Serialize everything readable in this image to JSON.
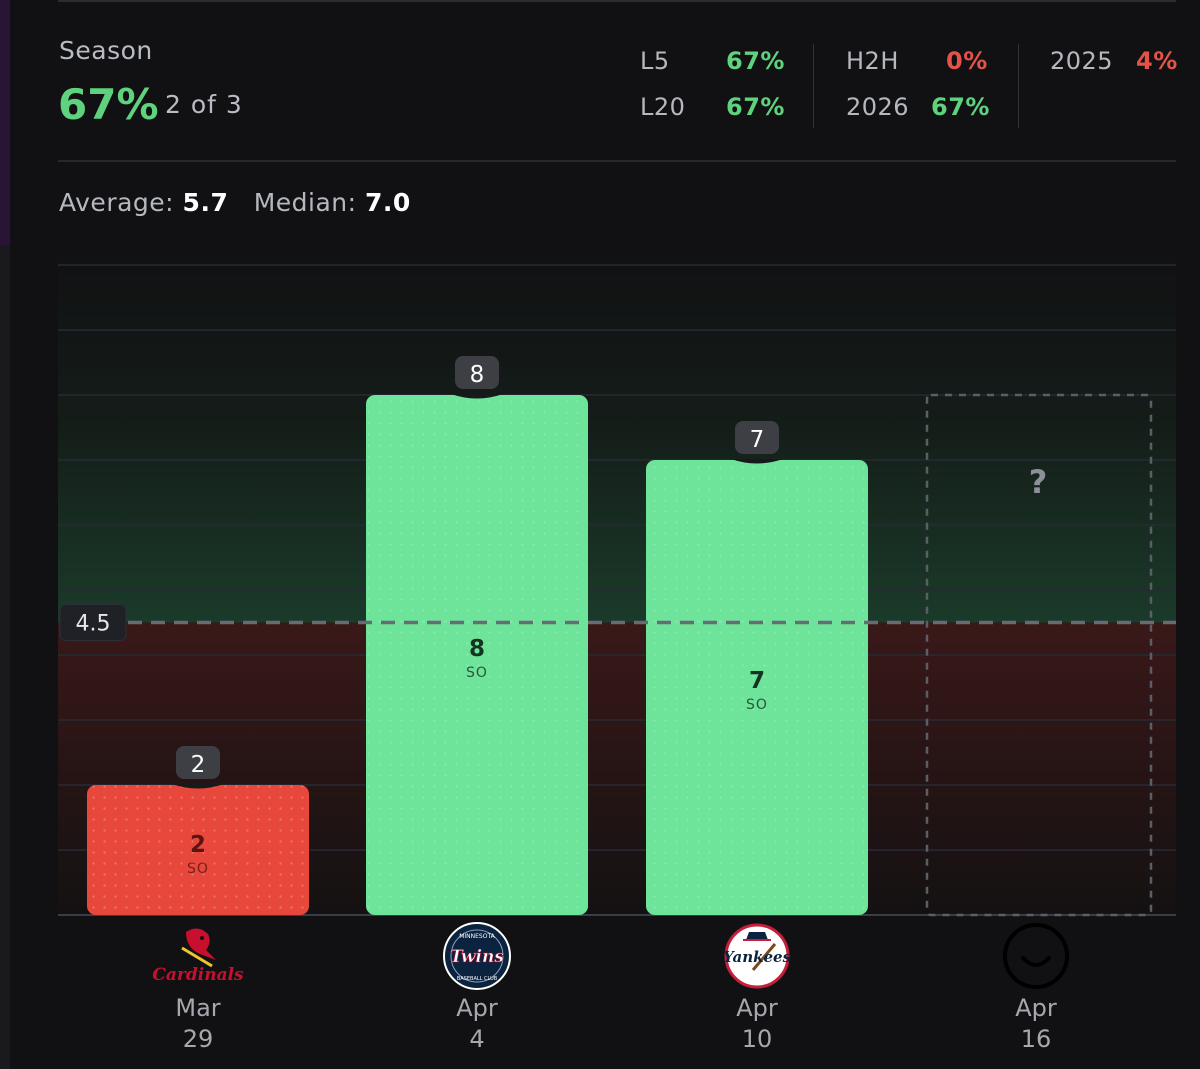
{
  "season": {
    "label": "Season",
    "hit_pct": "67%",
    "count": "2 of 3"
  },
  "stats": {
    "l5_label": "L5",
    "l5_value": "67%",
    "l20_label": "L20",
    "l20_value": "67%",
    "h2h_label": "H2H",
    "h2h_value": "0%",
    "y2026_label": "2026",
    "y2026_value": "67%",
    "y2025_label": "2025",
    "y2025_value": "4%"
  },
  "summary": {
    "average_label": "Average:",
    "average_value": "5.7",
    "median_label": "Median:",
    "median_value": "7.0"
  },
  "colors": {
    "green": "#5fd27e",
    "red": "#e55348",
    "bar_green": "#6ee39a",
    "bar_red": "#e8473c"
  },
  "chart_data": {
    "type": "bar",
    "title": "",
    "ylim": [
      0,
      10.3
    ],
    "line": {
      "value": 4.5,
      "label": "4.5"
    },
    "stat_unit": "SO",
    "categories": [
      {
        "month": "Mar",
        "day": "29",
        "opponent": "Cardinals",
        "logo": "cardinals-logo"
      },
      {
        "month": "Apr",
        "day": "4",
        "opponent": "Twins",
        "logo": "twins-logo"
      },
      {
        "month": "Apr",
        "day": "10",
        "opponent": "Yankees",
        "logo": "yankees-logo"
      },
      {
        "month": "Apr",
        "day": "16",
        "opponent": "",
        "logo": "smiley-icon"
      }
    ],
    "values": [
      2,
      8,
      7,
      null
    ],
    "upcoming_label": "?",
    "logo_texts": {
      "cardinals": "Cardinals",
      "twins_top": "MINNESOTA",
      "twins_mid": "Twins",
      "twins_bottom": "BASEBALL CLUB",
      "yankees": "Yankees"
    }
  }
}
